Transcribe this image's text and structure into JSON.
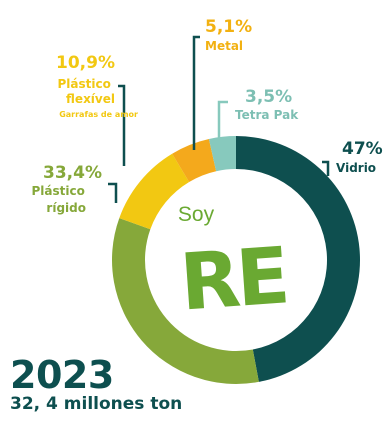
{
  "chart_data": {
    "type": "pie",
    "style": "donut",
    "categories": [
      "Vidrio",
      "Plástico rígido",
      "Plástico flexível",
      "Metal",
      "Tetra Pak"
    ],
    "values": [
      47,
      33.4,
      10.9,
      5.1,
      3.5
    ],
    "value_labels": [
      "47%",
      "33,4%",
      "10,9%",
      "5,1%",
      "3,5%"
    ],
    "sublabels": [
      "",
      "",
      "Garrafas de amor",
      "",
      ""
    ],
    "colors": [
      "#0e4f4f",
      "#86a83a",
      "#f2c812",
      "#f4a91c",
      "#87c9bd"
    ],
    "center_text": "Soy",
    "center_logo": "RE",
    "center_logo_color": "#6aa932"
  },
  "footer": {
    "year": "2023",
    "total": "32, 4 millones ton"
  }
}
